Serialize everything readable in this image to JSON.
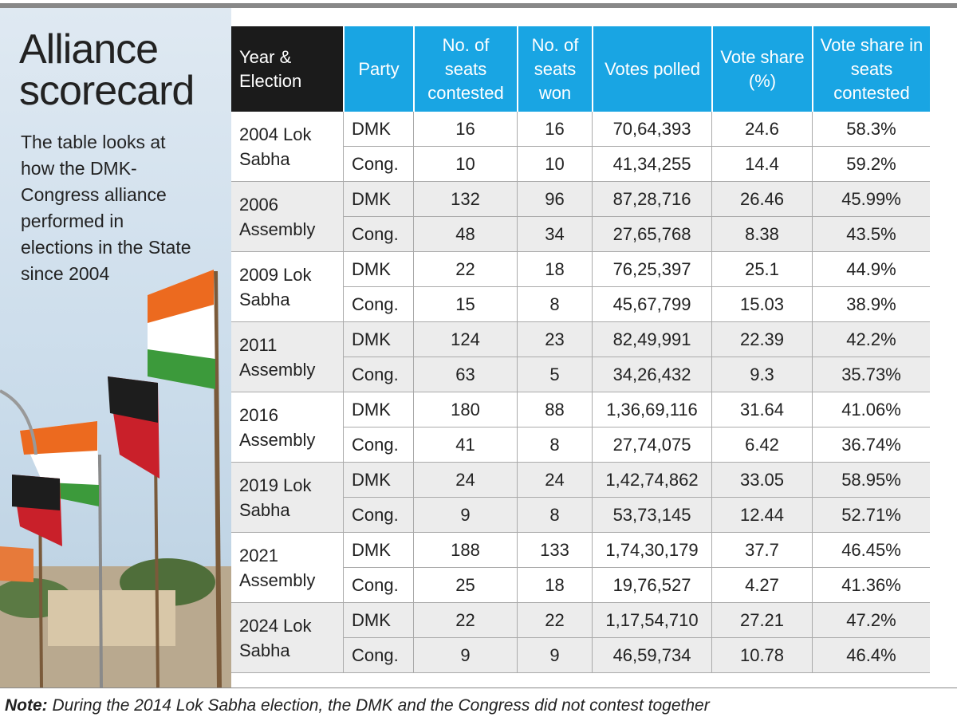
{
  "title": "Alliance scorecard",
  "description": "The table looks at how the DMK-Congress alliance performed in elections in the State since 2004",
  "table": {
    "header": [
      "Year & Election",
      "Party",
      "No. of seats contested",
      "No. of seats won",
      "Votes polled",
      "Vote share (%)",
      "Vote share in seats contested"
    ],
    "groups": [
      {
        "election": "2004 Lok Sabha",
        "rows": [
          [
            "DMK",
            "16",
            "16",
            "70,64,393",
            "24.6",
            "58.3%"
          ],
          [
            "Cong.",
            "10",
            "10",
            "41,34,255",
            "14.4",
            "59.2%"
          ]
        ]
      },
      {
        "election": "2006 Assembly",
        "rows": [
          [
            "DMK",
            "132",
            "96",
            "87,28,716",
            "26.46",
            "45.99%"
          ],
          [
            "Cong.",
            "48",
            "34",
            "27,65,768",
            "8.38",
            "43.5%"
          ]
        ]
      },
      {
        "election": "2009 Lok Sabha",
        "rows": [
          [
            "DMK",
            "22",
            "18",
            "76,25,397",
            "25.1",
            "44.9%"
          ],
          [
            "Cong.",
            "15",
            "8",
            "45,67,799",
            "15.03",
            "38.9%"
          ]
        ]
      },
      {
        "election": "2011 Assembly",
        "rows": [
          [
            "DMK",
            "124",
            "23",
            "82,49,991",
            "22.39",
            "42.2%"
          ],
          [
            "Cong.",
            "63",
            "5",
            "34,26,432",
            "9.3",
            "35.73%"
          ]
        ]
      },
      {
        "election": "2016 Assembly",
        "rows": [
          [
            "DMK",
            "180",
            "88",
            "1,36,69,116",
            "31.64",
            "41.06%"
          ],
          [
            "Cong.",
            "41",
            "8",
            "27,74,075",
            "6.42",
            "36.74%"
          ]
        ]
      },
      {
        "election": "2019 Lok Sabha",
        "rows": [
          [
            "DMK",
            "24",
            "24",
            "1,42,74,862",
            "33.05",
            "58.95%"
          ],
          [
            "Cong.",
            "9",
            "8",
            "53,73,145",
            "12.44",
            "52.71%"
          ]
        ]
      },
      {
        "election": "2021 Assembly",
        "rows": [
          [
            "DMK",
            "188",
            "133",
            "1,74,30,179",
            "37.7",
            "46.45%"
          ],
          [
            "Cong.",
            "25",
            "18",
            "19,76,527",
            "4.27",
            "41.36%"
          ]
        ]
      },
      {
        "election": "2024 Lok Sabha",
        "rows": [
          [
            "DMK",
            "22",
            "22",
            "1,17,54,710",
            "27.21",
            "47.2%"
          ],
          [
            "Cong.",
            "9",
            "9",
            "46,59,734",
            "10.78",
            "46.4%"
          ]
        ]
      }
    ]
  },
  "note": {
    "label": "Note:",
    "text": "During the 2014 Lok Sabha election, the DMK and the Congress did not contest together"
  }
}
